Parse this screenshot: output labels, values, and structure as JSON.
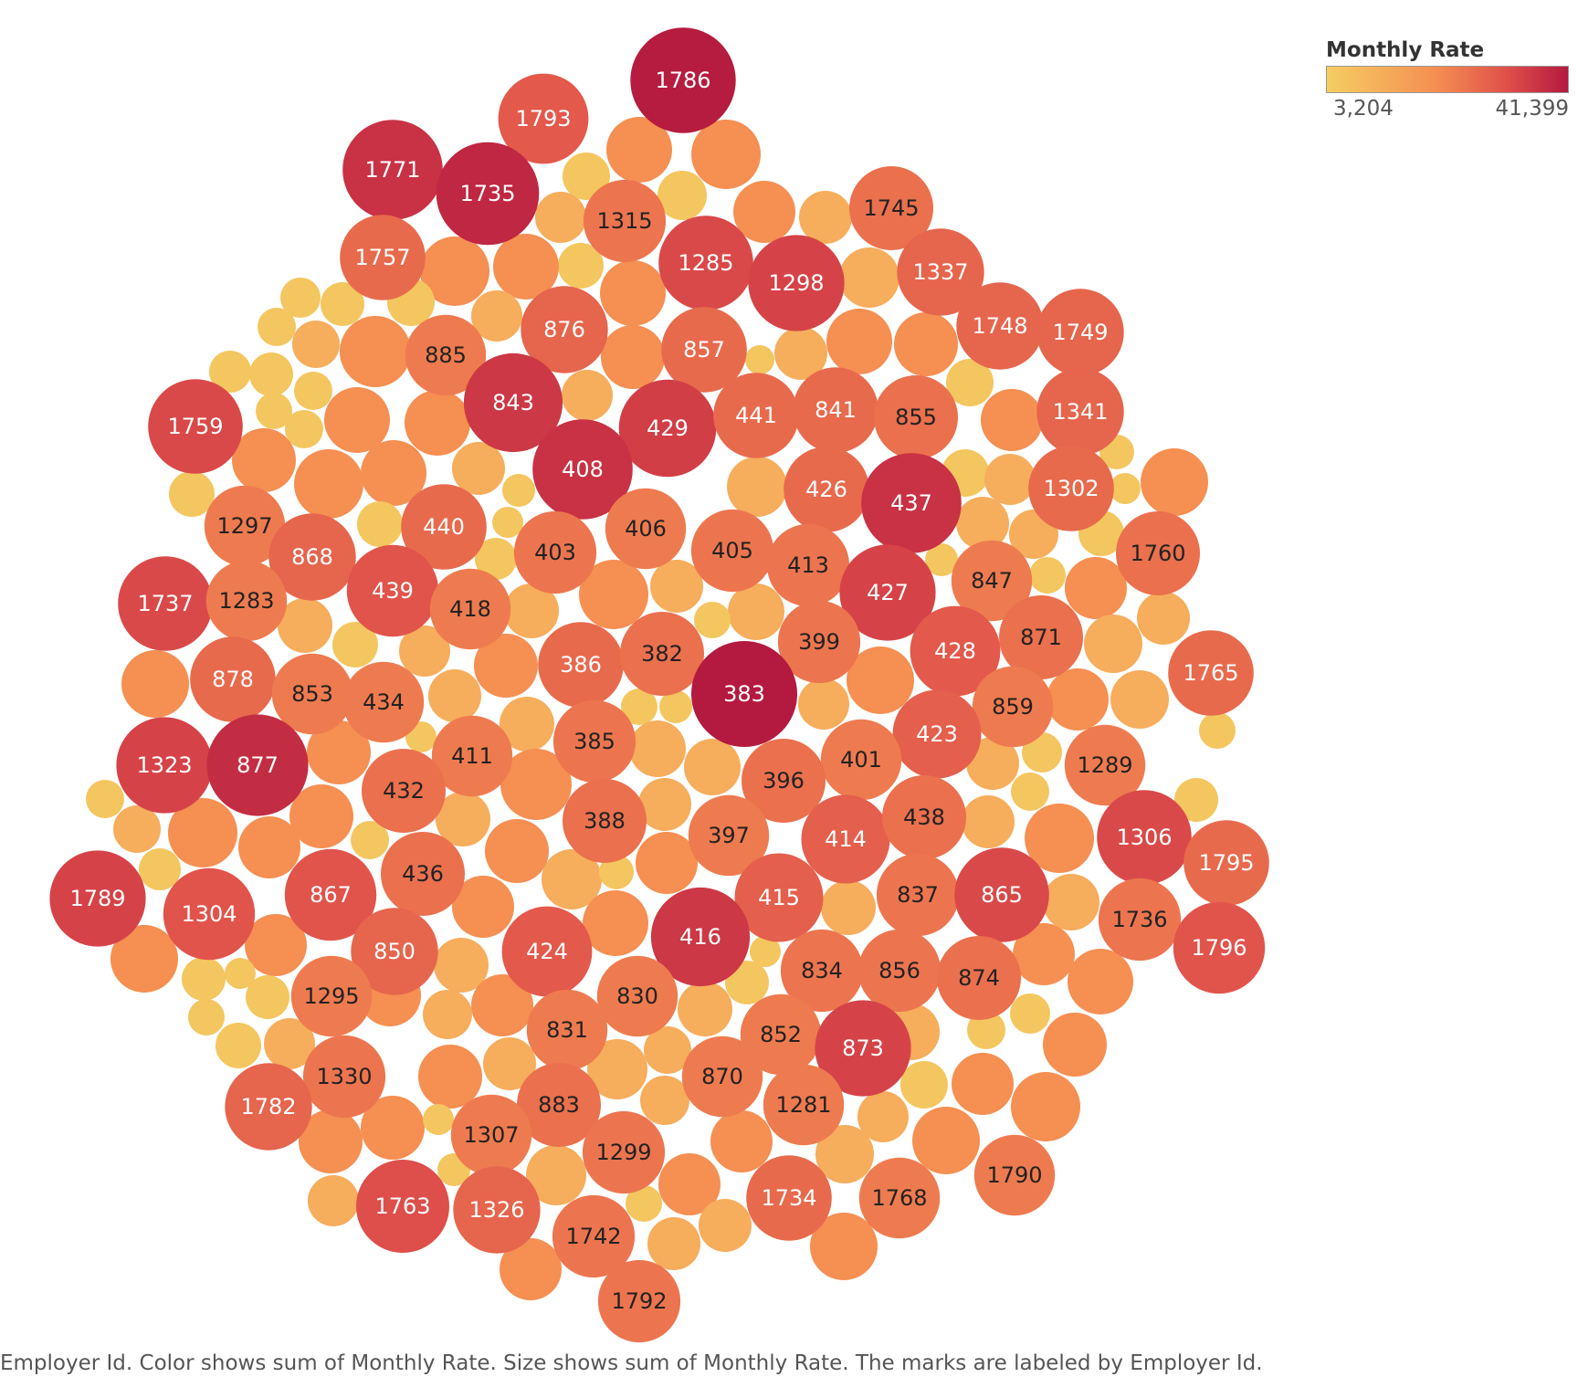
{
  "chart_data": {
    "type": "packed-bubble",
    "legend": {
      "title": "Monthly Rate",
      "min_label": "3,204",
      "max_label": "41,399",
      "colors": [
        "#f5cd62",
        "#f58f52",
        "#df4f4a",
        "#b41a3f"
      ],
      "placement": "top-right"
    },
    "caption": "Employer Id.  Color shows sum of Monthly Rate.  Size shows sum of Monthly Rate.  The marks are labeled by Employer Id.",
    "bubbles": [
      {
        "label": "1786",
        "value": 41000
      },
      {
        "label": "1793",
        "value": 30000
      },
      {
        "label": "1771",
        "value": 37000
      },
      {
        "label": "1735",
        "value": 39000
      },
      {
        "label": "1757",
        "value": 27000
      },
      {
        "label": "1315",
        "value": 25000
      },
      {
        "label": "1745",
        "value": 26000
      },
      {
        "label": "1285",
        "value": 33000
      },
      {
        "label": "1298",
        "value": 34000
      },
      {
        "label": "1337",
        "value": 28000
      },
      {
        "label": "876",
        "value": 28000
      },
      {
        "label": "857",
        "value": 27000
      },
      {
        "label": "885",
        "value": 24000
      },
      {
        "label": "1748",
        "value": 28000
      },
      {
        "label": "1749",
        "value": 28000
      },
      {
        "label": "843",
        "value": 36000
      },
      {
        "label": "429",
        "value": 35000
      },
      {
        "label": "441",
        "value": 27000
      },
      {
        "label": "841",
        "value": 27000
      },
      {
        "label": "855",
        "value": 26000
      },
      {
        "label": "1341",
        "value": 28000
      },
      {
        "label": "1759",
        "value": 33000
      },
      {
        "label": "408",
        "value": 37000
      },
      {
        "label": "426",
        "value": 27000
      },
      {
        "label": "437",
        "value": 37000
      },
      {
        "label": "1302",
        "value": 27000
      },
      {
        "label": "1297",
        "value": 24000
      },
      {
        "label": "440",
        "value": 27000
      },
      {
        "label": "406",
        "value": 24000
      },
      {
        "label": "405",
        "value": 25000
      },
      {
        "label": "403",
        "value": 25000
      },
      {
        "label": "868",
        "value": 28000
      },
      {
        "label": "1760",
        "value": 26000
      },
      {
        "label": "413",
        "value": 25000
      },
      {
        "label": "847",
        "value": 24000
      },
      {
        "label": "1737",
        "value": 33000
      },
      {
        "label": "1283",
        "value": 24000
      },
      {
        "label": "439",
        "value": 31000
      },
      {
        "label": "418",
        "value": 24000
      },
      {
        "label": "427",
        "value": 34000
      },
      {
        "label": "871",
        "value": 26000
      },
      {
        "label": "399",
        "value": 25000
      },
      {
        "label": "428",
        "value": 30000
      },
      {
        "label": "1765",
        "value": 27000
      },
      {
        "label": "386",
        "value": 27000
      },
      {
        "label": "382",
        "value": 26000
      },
      {
        "label": "878",
        "value": 27000
      },
      {
        "label": "853",
        "value": 24000
      },
      {
        "label": "434",
        "value": 24000
      },
      {
        "label": "383",
        "value": 41399
      },
      {
        "label": "859",
        "value": 24000
      },
      {
        "label": "423",
        "value": 29000
      },
      {
        "label": "1323",
        "value": 34000
      },
      {
        "label": "877",
        "value": 38000
      },
      {
        "label": "411",
        "value": 24000
      },
      {
        "label": "385",
        "value": 25000
      },
      {
        "label": "401",
        "value": 24000
      },
      {
        "label": "1289",
        "value": 24000
      },
      {
        "label": "432",
        "value": 26000
      },
      {
        "label": "396",
        "value": 26000
      },
      {
        "label": "388",
        "value": 26000
      },
      {
        "label": "397",
        "value": 24000
      },
      {
        "label": "414",
        "value": 29000
      },
      {
        "label": "438",
        "value": 26000
      },
      {
        "label": "1306",
        "value": 33000
      },
      {
        "label": "1795",
        "value": 27000
      },
      {
        "label": "1789",
        "value": 34000
      },
      {
        "label": "1304",
        "value": 31000
      },
      {
        "label": "867",
        "value": 31000
      },
      {
        "label": "436",
        "value": 26000
      },
      {
        "label": "415",
        "value": 29000
      },
      {
        "label": "837",
        "value": 25000
      },
      {
        "label": "865",
        "value": 33000
      },
      {
        "label": "1736",
        "value": 25000
      },
      {
        "label": "1796",
        "value": 31000
      },
      {
        "label": "850",
        "value": 28000
      },
      {
        "label": "424",
        "value": 30000
      },
      {
        "label": "416",
        "value": 36000
      },
      {
        "label": "834",
        "value": 25000
      },
      {
        "label": "856",
        "value": 25000
      },
      {
        "label": "874",
        "value": 26000
      },
      {
        "label": "1295",
        "value": 24000
      },
      {
        "label": "830",
        "value": 24000
      },
      {
        "label": "831",
        "value": 24000
      },
      {
        "label": "852",
        "value": 24000
      },
      {
        "label": "873",
        "value": 34000
      },
      {
        "label": "1330",
        "value": 25000
      },
      {
        "label": "870",
        "value": 24000
      },
      {
        "label": "1782",
        "value": 28000
      },
      {
        "label": "883",
        "value": 26000
      },
      {
        "label": "1281",
        "value": 24000
      },
      {
        "label": "1307",
        "value": 24000
      },
      {
        "label": "1299",
        "value": 25000
      },
      {
        "label": "1790",
        "value": 24000
      },
      {
        "label": "1763",
        "value": 32000
      },
      {
        "label": "1326",
        "value": 28000
      },
      {
        "label": "1734",
        "value": 27000
      },
      {
        "label": "1768",
        "value": 24000
      },
      {
        "label": "1742",
        "value": 25000
      },
      {
        "label": "1792",
        "value": 25000
      }
    ]
  }
}
